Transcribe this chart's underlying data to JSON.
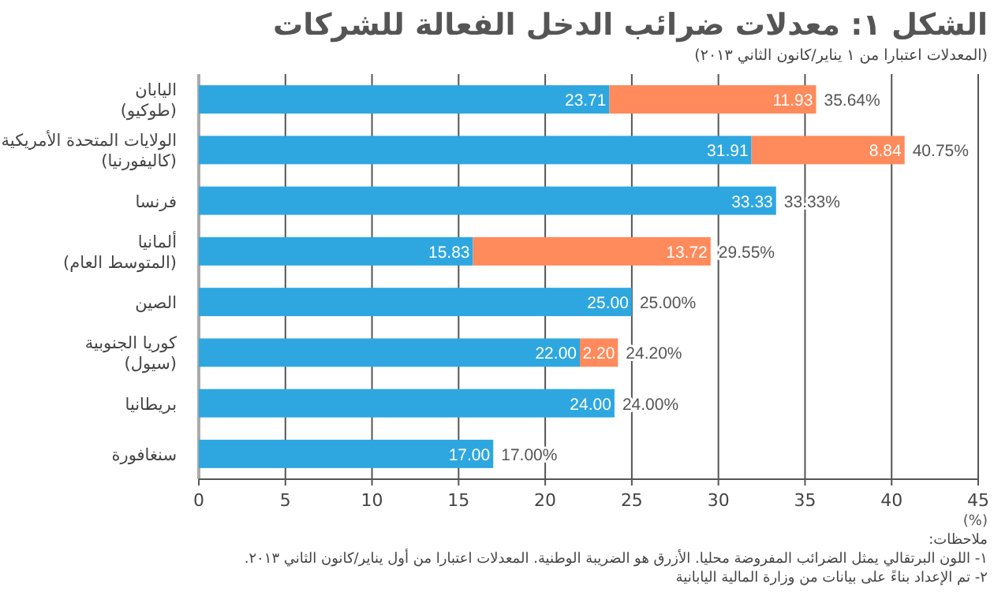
{
  "chart_data": {
    "type": "bar",
    "orientation": "horizontal",
    "stacked": true,
    "title": "الشكل ١: معدلات ضرائب الدخل الفعالة للشركات",
    "subtitle": "(المعدلات اعتبارا من ١ يناير/كانون الثاني ٢٠١٣)",
    "xlabel": "(%)",
    "categories": [
      "اليابان\n(طوكيو)",
      "الولايات المتحدة الأمريكية\n(كاليفورنيا)",
      "فرنسا",
      "ألمانيا\n(المتوسط العام)",
      "الصين",
      "كوريا الجنوبية\n(سيول)",
      "بريطانيا",
      "سنغافورة"
    ],
    "series": [
      {
        "color": "#2ea7e0",
        "values": [
          23.71,
          31.91,
          33.33,
          15.83,
          25.0,
          22.0,
          24.0,
          17.0
        ],
        "value_labels": [
          "23.71",
          "31.91",
          "33.33",
          "15.83",
          "25.00",
          "22.00",
          "24.00",
          "17.00"
        ]
      },
      {
        "color": "#ff8a5b",
        "values": [
          11.93,
          8.84,
          null,
          13.72,
          null,
          2.2,
          null,
          null
        ],
        "value_labels": [
          "11.93",
          "8.84",
          null,
          "13.72",
          null,
          "2.20",
          null,
          null
        ]
      }
    ],
    "totals": [
      "35.64%",
      "40.75%",
      "33.33%",
      "29.55%",
      "25.00%",
      "24.20%",
      "24.00%",
      "17.00%"
    ],
    "xlim": [
      0,
      45
    ],
    "xticks": [
      0,
      5,
      10,
      15,
      20,
      25,
      30,
      35,
      40,
      45
    ],
    "grid": "x",
    "annotations": [
      "ملاحظات:",
      "١- اللون البرتقالي يمثل الضرائب المفروضة محليا. الأزرق هو الضريبة الوطنية. المعدلات اعتبارا من أول يناير/كانون الثاني ٢٠١٣.",
      "٢- تم الإعداد بناءً على بيانات من وزارة المالية اليابانية"
    ]
  }
}
